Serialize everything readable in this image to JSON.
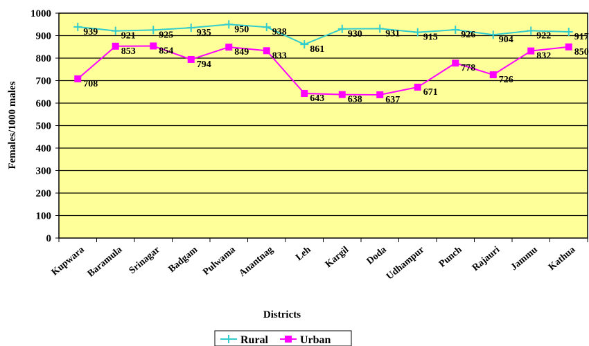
{
  "chart_data": {
    "type": "line",
    "title": "",
    "xlabel": "Districts",
    "ylabel": "Females/1000 males",
    "ylim": [
      0,
      1000
    ],
    "yticks": [
      0,
      100,
      200,
      300,
      400,
      500,
      600,
      700,
      800,
      900,
      1000
    ],
    "grid": true,
    "legend": "bottom",
    "plot_background": "#ffff99",
    "categories": [
      "Kupwara",
      "Baramula",
      "Srinagar",
      "Badgam",
      "Pulwama",
      "Anantnag",
      "Leh",
      "Kargil",
      "Doda",
      "Udhampur",
      "Punch",
      "Rajauri",
      "Jammu",
      "Kathua"
    ],
    "series": [
      {
        "name": "Rural",
        "color": "#33cccc",
        "values": [
          939,
          921,
          925,
          935,
          950,
          938,
          861,
          930,
          931,
          915,
          926,
          904,
          922,
          917
        ],
        "labels": [
          "939",
          "921",
          "925",
          "935",
          "950",
          "938",
          "861",
          "930",
          "931",
          "915",
          "926",
          "904",
          "922",
          "917"
        ]
      },
      {
        "name": "Urban",
        "color": "#ff00ff",
        "values": [
          708,
          853,
          854,
          794,
          849,
          833,
          643,
          638,
          637,
          671,
          778,
          726,
          832,
          850
        ],
        "labels": [
          "708",
          "853",
          "854",
          "794",
          "849",
          "833",
          "643",
          "638",
          "637",
          "671",
          "778",
          "726",
          "832",
          "850"
        ]
      }
    ]
  }
}
